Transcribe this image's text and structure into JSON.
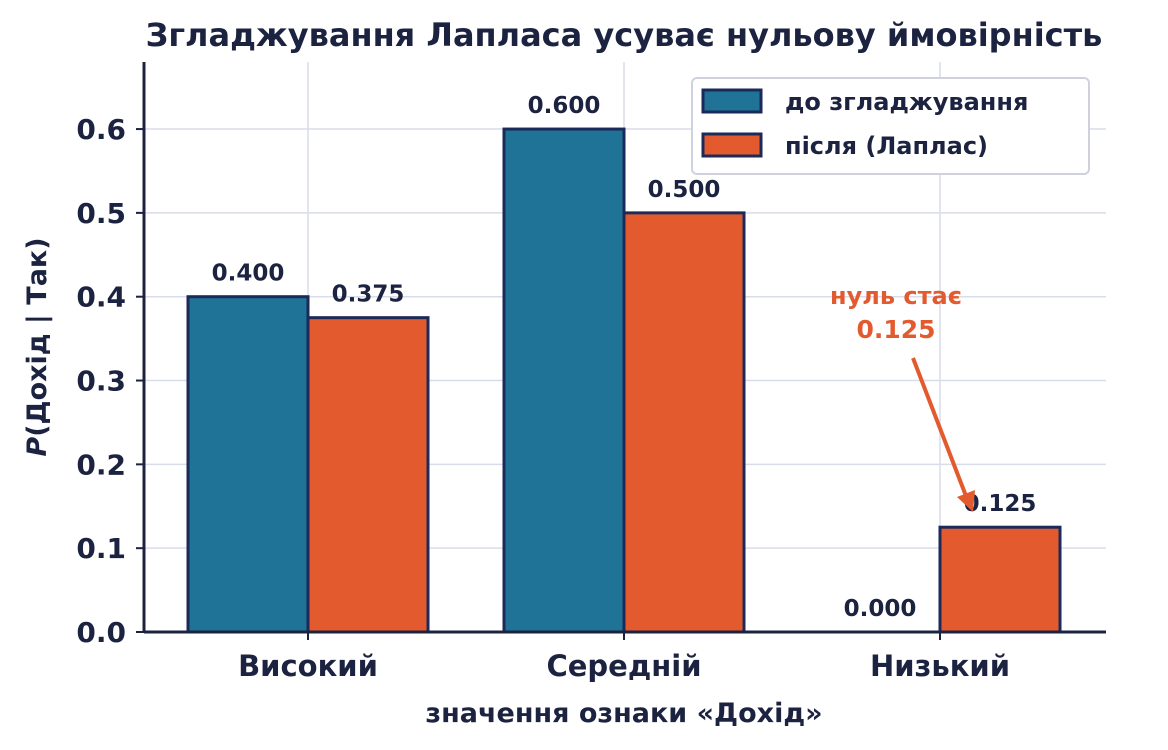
{
  "chart_data": {
    "type": "bar",
    "title": "Згладжування Лапласа усуває нульову ймовірність",
    "xlabel": "значення ознаки «Дохід»",
    "ylabel": "P(Дохід | Так)",
    "ylabel_italic_part": "P",
    "ylabel_rest": "(Дохід | Так)",
    "categories": [
      "Високий",
      "Середній",
      "Низький"
    ],
    "ylim": [
      0,
      0.68
    ],
    "yticks": [
      0.0,
      0.1,
      0.2,
      0.3,
      0.4,
      0.5,
      0.6
    ],
    "ytick_labels": [
      "0.0",
      "0.1",
      "0.2",
      "0.3",
      "0.4",
      "0.5",
      "0.6"
    ],
    "grid": true,
    "legend_position": "top-right",
    "series": [
      {
        "name": "до згладжування",
        "color": "#1f7396",
        "values": [
          0.4,
          0.6,
          0.0
        ],
        "labels": [
          "0.400",
          "0.600",
          "0.000"
        ]
      },
      {
        "name": "після (Лаплас)",
        "color": "#e35a2f",
        "values": [
          0.375,
          0.5,
          0.125
        ],
        "labels": [
          "0.375",
          "0.500",
          "0.125"
        ]
      }
    ],
    "annotation": {
      "line1": "нуль стає",
      "line2": "0.125",
      "color": "#e35a2f",
      "target_category": "Низький",
      "target_value": 0.125
    }
  },
  "colors": {
    "axis": "#1c2340",
    "grid": "#d9dcea",
    "bar_edge": "#1c2a5a"
  }
}
